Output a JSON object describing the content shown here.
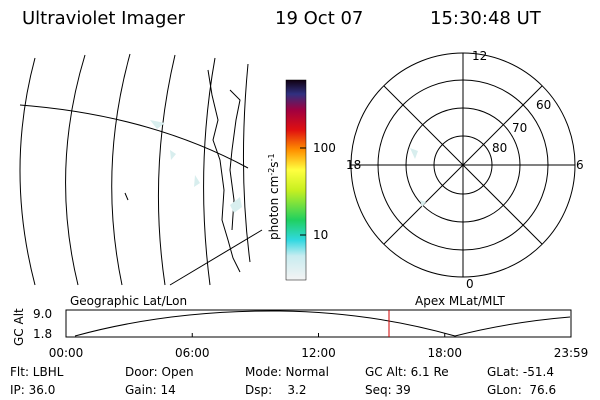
{
  "header": {
    "instrument": "Ultraviolet Imager",
    "date": "19 Oct 07",
    "time": "15:30:48 UT"
  },
  "colorbar": {
    "unit": [
      "photon cm",
      "-2",
      "s",
      "-1"
    ],
    "labels": [
      "100",
      "10"
    ]
  },
  "polar": {
    "lat_labels": [
      "80",
      "70",
      "60"
    ],
    "mlt_labels": [
      "12",
      "18",
      "6",
      "0"
    ]
  },
  "timeline": {
    "left_title": "Geographic Lat/Lon",
    "right_title": "Apex MLat/MLT",
    "y_title": "GC Alt",
    "y_labels": [
      "9.0",
      "1.8"
    ],
    "x_labels": [
      "00:00",
      "06:00",
      "12:00",
      "18:00",
      "23:59"
    ]
  },
  "info": [
    [
      "Flt: LBHL",
      "Door: Open",
      "Mode: Normal",
      "GC Alt: 6.1 Re",
      "GLat: -51.4"
    ],
    [
      "IP: 36.0",
      "Gain: 14",
      "Dsp:    3.2",
      "Seq: 39",
      "GLon:  76.6"
    ]
  ]
}
